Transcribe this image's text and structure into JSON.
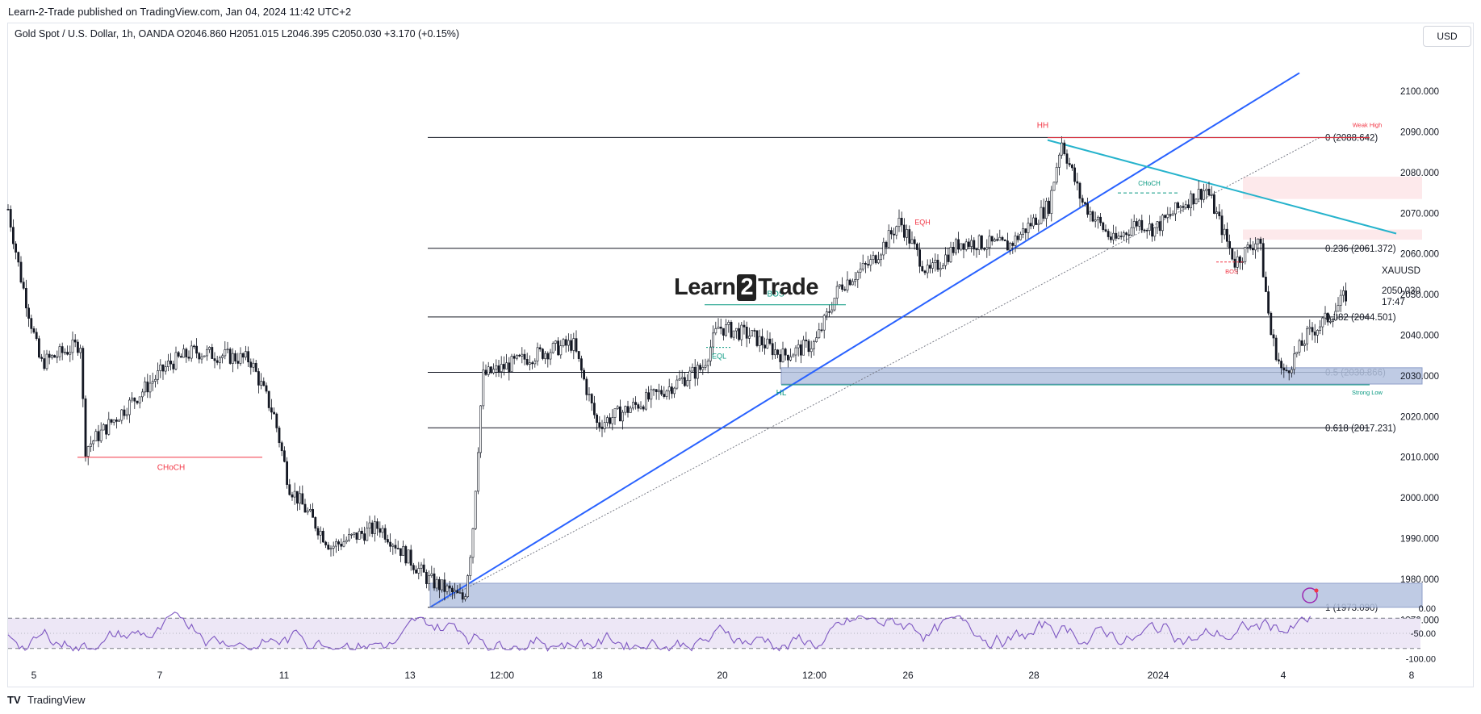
{
  "header": {
    "publisher": "Learn-2-Trade published on TradingView.com, Jan 04, 2024 11:42 UTC+2",
    "legend": "Gold Spot / U.S. Dollar, 1h, OANDA  O2046.860  H2051.015  L2046.395  C2050.030  +3.170 (+0.15%)",
    "currency": "USD"
  },
  "footer": {
    "logo": "TV",
    "brand": "TradingView"
  },
  "watermark": {
    "pre": "Learn",
    "box": "2",
    "post": "Trade"
  },
  "colors": {
    "candle": "#131722",
    "trend_blue": "#2962ff",
    "cyan": "#26b3cc",
    "red": "#f23645",
    "teal": "#089981",
    "zone_blue": "#b4c3e0",
    "zone_pink": "#fde5e7",
    "rsi_line": "#7e57c2",
    "rsi_band": "#ede7f6"
  },
  "chart_data": [
    {
      "type": "candlestick",
      "symbol": "XAUUSD",
      "timeframe": "1h",
      "x_ticks": [
        "5",
        "7",
        "11",
        "13",
        "12:00",
        "18",
        "20",
        "12:00",
        "26",
        "28",
        "2024",
        "4",
        "8"
      ],
      "y_ticks": [
        "2100.000",
        "2090.000",
        "2080.000",
        "2070.000",
        "2060.000",
        "2050.000",
        "2040.000",
        "2030.000",
        "2020.000",
        "2010.000",
        "2000.000",
        "1990.000",
        "1980.000",
        "1970.000"
      ],
      "y_tick_values": [
        2100,
        2090,
        2080,
        2070,
        2060,
        2050,
        2040,
        2030,
        2020,
        2010,
        2000,
        1990,
        1980,
        1970
      ],
      "ylim": [
        1965.7,
        2115.5
      ],
      "path_anchors": [
        [
          0,
          2071
        ],
        [
          15,
          2055
        ],
        [
          40,
          2033
        ],
        [
          90,
          2038
        ],
        [
          95,
          2012
        ],
        [
          200,
          2033
        ],
        [
          230,
          2036
        ],
        [
          300,
          2034
        ],
        [
          330,
          2020
        ],
        [
          348,
          2003
        ],
        [
          400,
          1988
        ],
        [
          460,
          1993
        ],
        [
          520,
          1980
        ],
        [
          565,
          1975
        ],
        [
          575,
          1990
        ],
        [
          588,
          2030
        ],
        [
          650,
          2035
        ],
        [
          700,
          2038
        ],
        [
          730,
          2018
        ],
        [
          800,
          2025
        ],
        [
          860,
          2032
        ],
        [
          880,
          2042
        ],
        [
          920,
          2040
        ],
        [
          960,
          2035
        ],
        [
          1000,
          2038
        ],
        [
          1030,
          2052
        ],
        [
          1070,
          2058
        ],
        [
          1105,
          2068
        ],
        [
          1140,
          2055
        ],
        [
          1180,
          2063
        ],
        [
          1240,
          2062
        ],
        [
          1290,
          2072
        ],
        [
          1305,
          2088
        ],
        [
          1330,
          2073
        ],
        [
          1370,
          2063
        ],
        [
          1400,
          2068
        ],
        [
          1420,
          2066
        ],
        [
          1460,
          2073
        ],
        [
          1485,
          2076
        ],
        [
          1520,
          2058
        ],
        [
          1550,
          2064
        ],
        [
          1565,
          2040
        ],
        [
          1580,
          2030
        ],
        [
          1610,
          2040
        ],
        [
          1640,
          2045
        ],
        [
          1658,
          2050
        ]
      ],
      "last_price": "2050.030",
      "countdown": "17:47",
      "fib_levels": [
        {
          "label": "0 (2088.642)",
          "price": 2088.642
        },
        {
          "label": "0.236 (2061.372)",
          "price": 2061.372
        },
        {
          "label": "0.382 (2044.501)",
          "price": 2044.501
        },
        {
          "label": "0.5 (2030.866)",
          "price": 2030.866
        },
        {
          "label": "0.618 (2017.231)",
          "price": 2017.231
        },
        {
          "label": "1 (1973.090)",
          "price": 1973.09
        }
      ],
      "annotations": {
        "choch_low": "CHoCH",
        "bos_mid": "BOS",
        "eql": "EQL",
        "hl": "HL",
        "eqh": "EQH",
        "hh": "HH",
        "choch_top": "CHoCH",
        "bos_right": "BOS",
        "weak_high": "Weak High",
        "strong_low": "Strong Low"
      }
    },
    {
      "type": "line",
      "name": "",
      "y_ticks": [
        "0.00",
        "-50.00",
        "-100.00"
      ],
      "y_tick_values": [
        0,
        -50,
        -100
      ],
      "ylim": [
        -106,
        6
      ],
      "band": [
        -20,
        -80
      ]
    }
  ]
}
